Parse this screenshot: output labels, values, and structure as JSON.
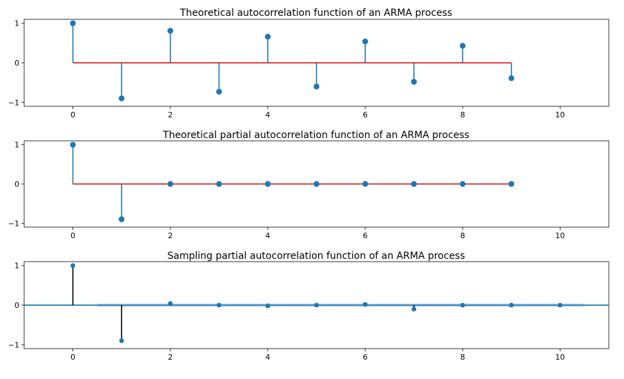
{
  "colors": {
    "stem": "#1f77b4",
    "baseline": "#d62728",
    "black_stem": "#000000",
    "band": "#1f77b4"
  },
  "chart_data": [
    {
      "type": "stem",
      "title": "Theoretical autocorrelation function of an ARMA process",
      "xlim": [
        -1,
        11
      ],
      "ylim": [
        -1.1,
        1.1
      ],
      "xticks": [
        0,
        2,
        4,
        6,
        8,
        10
      ],
      "yticks": [
        1,
        0,
        -1
      ],
      "x": [
        0,
        1,
        2,
        3,
        4,
        5,
        6,
        7,
        8,
        9
      ],
      "values": [
        1.0,
        -0.9,
        0.81,
        -0.73,
        0.66,
        -0.6,
        0.54,
        -0.48,
        0.43,
        -0.39
      ],
      "baseline": true
    },
    {
      "type": "stem",
      "title": "Theoretical partial autocorrelation function of an ARMA process",
      "xlim": [
        -1,
        11
      ],
      "ylim": [
        -1.1,
        1.1
      ],
      "xticks": [
        0,
        2,
        4,
        6,
        8,
        10
      ],
      "yticks": [
        1,
        0,
        -1
      ],
      "x": [
        0,
        1,
        2,
        3,
        4,
        5,
        6,
        7,
        8,
        9
      ],
      "values": [
        1.0,
        -0.9,
        0.0,
        0.0,
        0.0,
        0.0,
        0.0,
        0.0,
        0.0,
        0.0
      ],
      "baseline": true
    },
    {
      "type": "stem",
      "title": "Sampling partial autocorrelation function of an ARMA process",
      "xlim": [
        -1,
        11
      ],
      "ylim": [
        -1.1,
        1.1
      ],
      "xticks": [
        0,
        2,
        4,
        6,
        8,
        10
      ],
      "yticks": [
        1,
        0,
        -1
      ],
      "x": [
        0,
        1,
        2,
        3,
        4,
        5,
        6,
        7,
        8,
        9,
        10
      ],
      "values": [
        1.0,
        -0.9,
        0.04,
        0.0,
        -0.02,
        0.0,
        0.02,
        -0.1,
        0.0,
        0.0,
        0.0
      ],
      "confidence_band": [
        -0.045,
        0.045
      ],
      "confidence_band_x": [
        0.5,
        10.5
      ],
      "black_stems": true
    }
  ]
}
